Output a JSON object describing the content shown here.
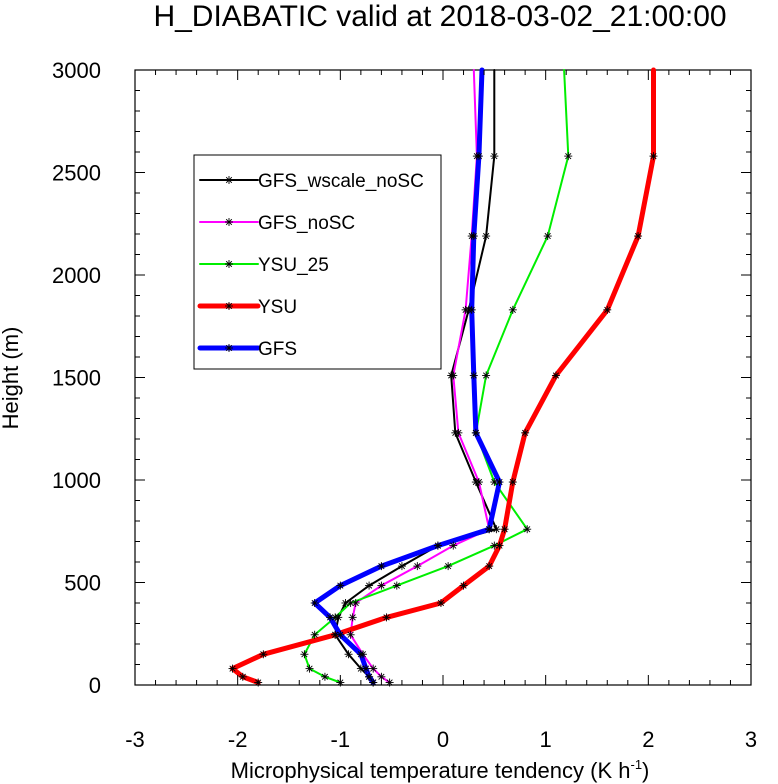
{
  "chart_data": {
    "type": "line",
    "title": "H_DIABATIC valid at 2018-03-02_21:00:00",
    "xlabel": "Microphysical temperature tendency (K h",
    "xlabel_sup": "-1",
    "xlabel_close": ")",
    "ylabel": "Height (m)",
    "xlim": [
      -3,
      3
    ],
    "ylim": [
      0,
      3000
    ],
    "xticks": [
      -3,
      -2,
      -1,
      0,
      1,
      2,
      3
    ],
    "yticks": [
      0,
      500,
      1000,
      1500,
      2000,
      2500,
      3000
    ],
    "xtick_labels": [
      "-3",
      "-2",
      "-1",
      "0",
      "1",
      "2",
      "3"
    ],
    "ytick_labels": [
      "0",
      "500",
      "1000",
      "1500",
      "2000",
      "2500",
      "3000"
    ],
    "grid": false,
    "legend_placement": "upper-left",
    "series": [
      {
        "name": "GFS_wscale_noSC",
        "color": "#000000",
        "width": 2,
        "x": [
          -0.68,
          -0.72,
          -0.8,
          -0.92,
          -1.05,
          -1.02,
          -0.95,
          -0.72,
          -0.4,
          -0.05,
          0.52,
          0.32,
          0.12,
          0.08,
          0.25,
          0.42,
          0.5,
          0.5
        ],
        "y": [
          12,
          40,
          80,
          150,
          245,
          330,
          400,
          485,
          580,
          680,
          760,
          990,
          1230,
          1510,
          1830,
          2190,
          2580,
          3000
        ]
      },
      {
        "name": "GFS_noSC",
        "color": "#ff00ff",
        "width": 2,
        "x": [
          -0.52,
          -0.6,
          -0.68,
          -0.78,
          -0.9,
          -0.88,
          -0.85,
          -0.6,
          -0.25,
          0.1,
          0.45,
          0.35,
          0.15,
          0.1,
          0.22,
          0.28,
          0.33,
          0.3
        ],
        "y": [
          12,
          40,
          80,
          150,
          245,
          330,
          400,
          485,
          580,
          680,
          760,
          990,
          1230,
          1510,
          1830,
          2190,
          2580,
          3000
        ]
      },
      {
        "name": "YSU_25",
        "color": "#00ee00",
        "width": 2,
        "x": [
          -1.0,
          -1.15,
          -1.3,
          -1.35,
          -1.25,
          -1.05,
          -0.9,
          -0.45,
          0.05,
          0.5,
          0.82,
          0.5,
          0.32,
          0.42,
          0.68,
          1.02,
          1.22,
          1.18
        ],
        "y": [
          12,
          40,
          80,
          150,
          245,
          330,
          400,
          485,
          580,
          680,
          760,
          990,
          1230,
          1510,
          1830,
          2190,
          2580,
          3000
        ]
      },
      {
        "name": "YSU",
        "color": "#ff0000",
        "width": 5,
        "x": [
          -1.8,
          -1.95,
          -2.05,
          -1.75,
          -1.05,
          -0.55,
          -0.02,
          0.2,
          0.45,
          0.55,
          0.6,
          0.68,
          0.8,
          1.1,
          1.6,
          1.9,
          2.05,
          2.05
        ],
        "y": [
          12,
          40,
          80,
          150,
          245,
          330,
          400,
          485,
          580,
          680,
          760,
          990,
          1230,
          1510,
          1830,
          2190,
          2580,
          3000
        ]
      },
      {
        "name": "GFS",
        "color": "#0000ff",
        "width": 5,
        "x": [
          -0.68,
          -0.72,
          -0.75,
          -0.8,
          -1.0,
          -1.1,
          -1.25,
          -1.0,
          -0.6,
          -0.05,
          0.45,
          0.55,
          0.32,
          0.3,
          0.28,
          0.3,
          0.35,
          0.38
        ],
        "y": [
          12,
          40,
          80,
          150,
          245,
          330,
          400,
          485,
          580,
          680,
          760,
          990,
          1230,
          1510,
          1830,
          2190,
          2580,
          3000
        ]
      }
    ]
  }
}
